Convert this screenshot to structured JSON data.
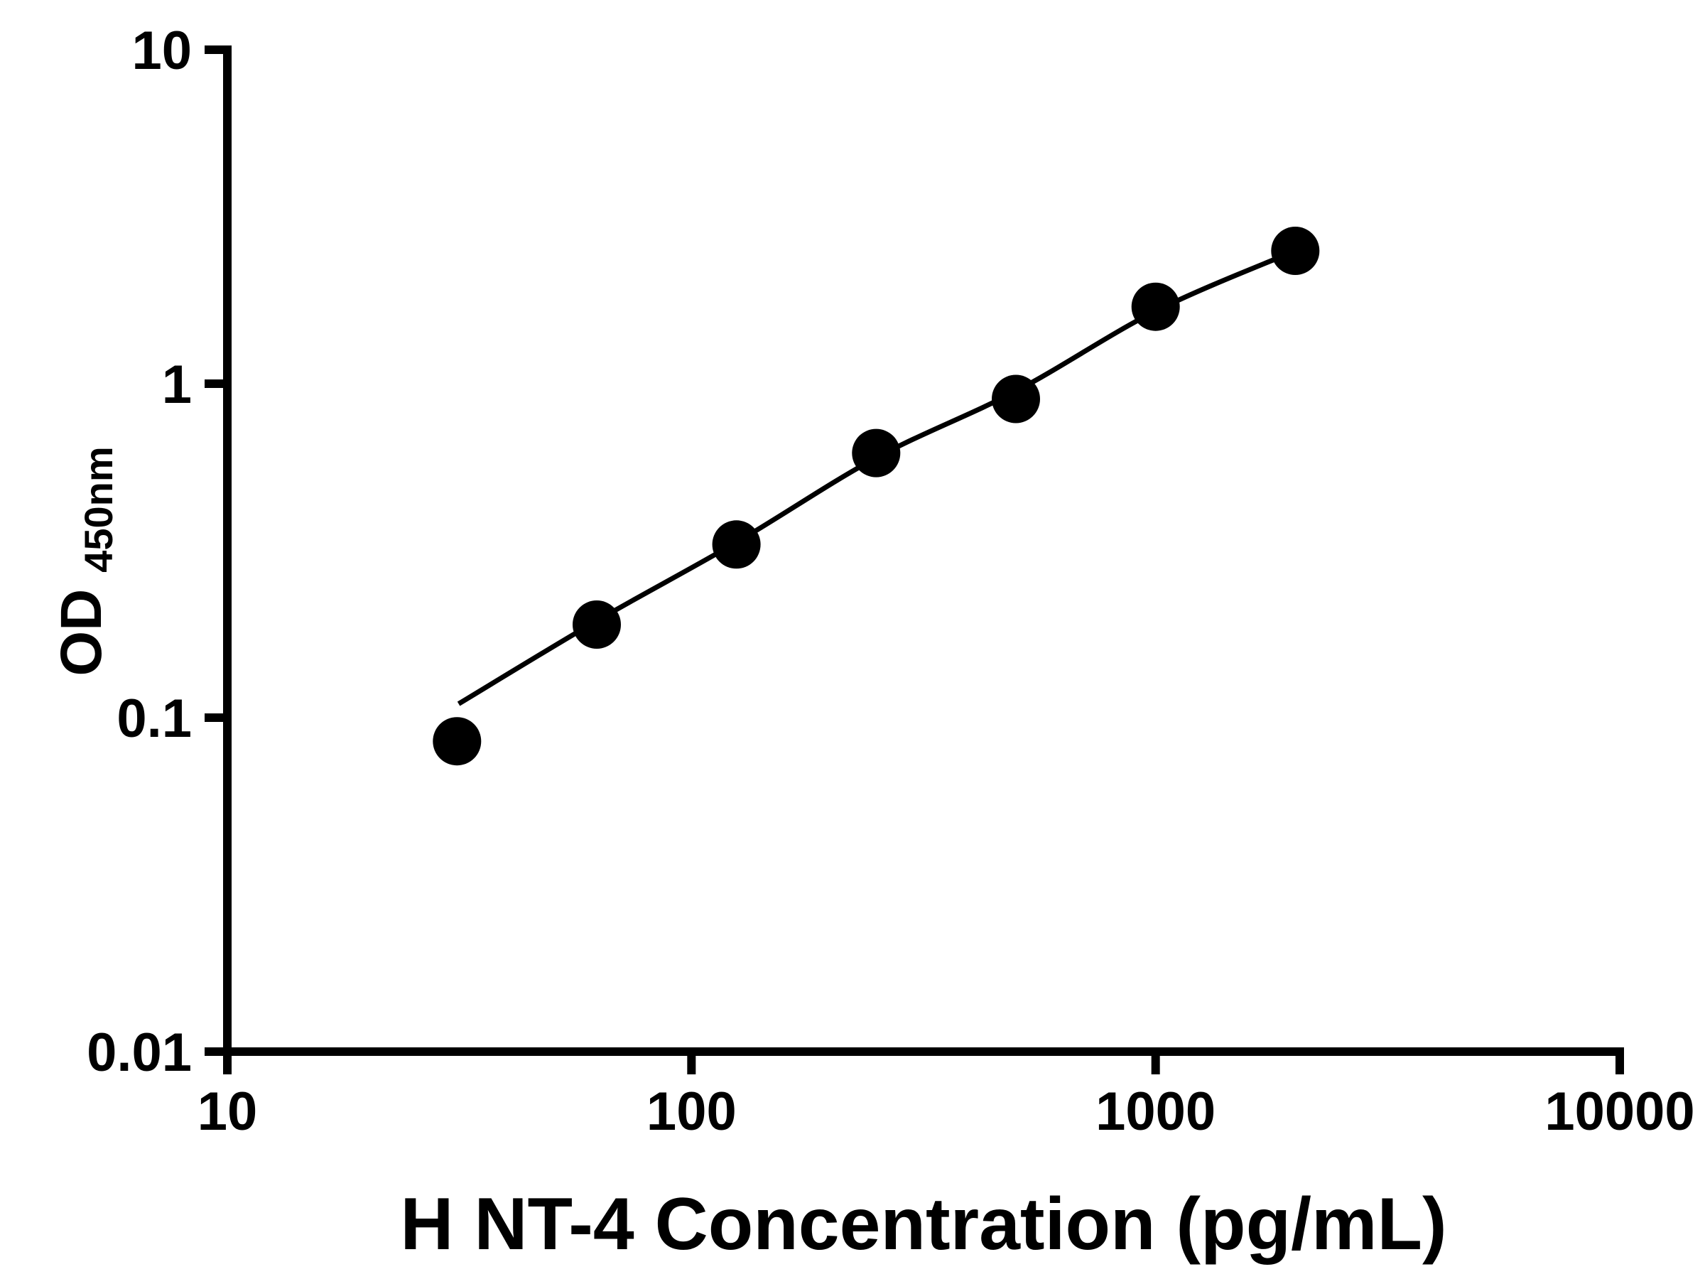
{
  "figure": {
    "background": "#ffffff",
    "foreground": "#000000"
  },
  "chart_data": {
    "type": "scatter",
    "title": "",
    "xlabel": "H NT-4 Concentration (pg/mL)",
    "ylabel": "OD450nm",
    "ylabel_main": "OD",
    "ylabel_sub": "450nm",
    "x_scale": "log",
    "y_scale": "log",
    "xlim": [
      10,
      10000
    ],
    "ylim": [
      0.01,
      10
    ],
    "x_ticks": [
      10,
      100,
      1000,
      10000
    ],
    "y_ticks": [
      0.01,
      0.1,
      1,
      10
    ],
    "grid": false,
    "legend": false,
    "marker_color": "#000000",
    "line_color": "#000000",
    "axis_color": "#000000",
    "points": [
      {
        "x": 31.25,
        "y": 0.085
      },
      {
        "x": 62.5,
        "y": 0.19
      },
      {
        "x": 125,
        "y": 0.33
      },
      {
        "x": 250,
        "y": 0.62
      },
      {
        "x": 500,
        "y": 0.9
      },
      {
        "x": 1000,
        "y": 1.7
      },
      {
        "x": 2000,
        "y": 2.5
      }
    ],
    "fit_line": [
      {
        "x": 31.5,
        "y": 0.11
      },
      {
        "x": 62.5,
        "y": 0.195
      },
      {
        "x": 125,
        "y": 0.335
      },
      {
        "x": 250,
        "y": 0.6
      },
      {
        "x": 500,
        "y": 0.95
      },
      {
        "x": 1000,
        "y": 1.65
      },
      {
        "x": 2000,
        "y": 2.5
      }
    ]
  }
}
